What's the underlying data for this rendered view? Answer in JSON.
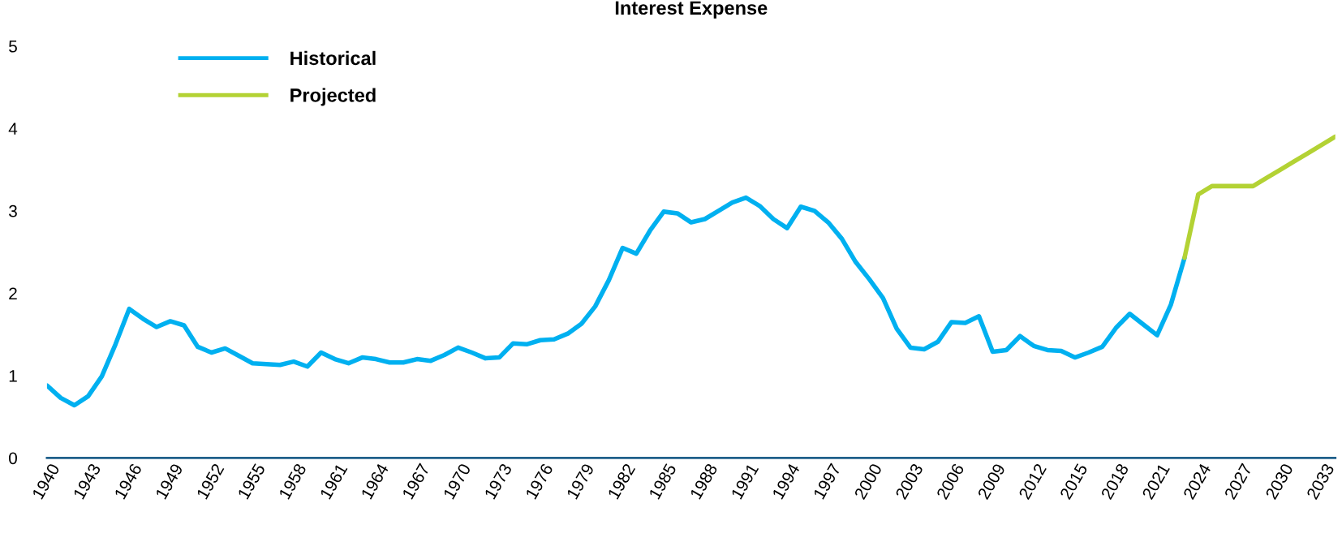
{
  "chart_data": {
    "type": "line",
    "title": "Interest Expense",
    "xlim": [
      1940,
      2034
    ],
    "xticks": [
      1940,
      1943,
      1946,
      1949,
      1952,
      1955,
      1958,
      1961,
      1964,
      1967,
      1970,
      1973,
      1976,
      1979,
      1982,
      1985,
      1988,
      1991,
      1994,
      1997,
      2000,
      2003,
      2006,
      2009,
      2012,
      2015,
      2018,
      2021,
      2024,
      2027,
      2030,
      2033
    ],
    "ylim": [
      0,
      5
    ],
    "yticks": [
      0,
      1,
      2,
      3,
      4,
      5
    ],
    "grid": false,
    "legend": "top left",
    "marker": "none",
    "line_style": "solid",
    "series": [
      {
        "name": "Historical",
        "color": "#00b0f0",
        "x": [
          1940,
          1941,
          1942,
          1943,
          1944,
          1945,
          1946,
          1947,
          1948,
          1949,
          1950,
          1951,
          1952,
          1953,
          1954,
          1955,
          1956,
          1957,
          1958,
          1959,
          1960,
          1961,
          1962,
          1963,
          1964,
          1965,
          1966,
          1967,
          1968,
          1969,
          1970,
          1971,
          1972,
          1973,
          1974,
          1975,
          1976,
          1977,
          1978,
          1979,
          1980,
          1981,
          1982,
          1983,
          1984,
          1985,
          1986,
          1987,
          1988,
          1989,
          1990,
          1991,
          1992,
          1993,
          1994,
          1995,
          1996,
          1997,
          1998,
          1999,
          2000,
          2001,
          2002,
          2003,
          2004,
          2005,
          2006,
          2007,
          2008,
          2009,
          2010,
          2011,
          2012,
          2013,
          2014,
          2015,
          2016,
          2017,
          2018,
          2019,
          2020,
          2021,
          2022,
          2023
        ],
        "values": [
          0.88,
          0.73,
          0.64,
          0.75,
          0.99,
          1.38,
          1.81,
          1.69,
          1.59,
          1.66,
          1.61,
          1.35,
          1.28,
          1.33,
          1.24,
          1.15,
          1.14,
          1.13,
          1.17,
          1.11,
          1.28,
          1.2,
          1.15,
          1.22,
          1.2,
          1.16,
          1.16,
          1.2,
          1.18,
          1.25,
          1.34,
          1.28,
          1.21,
          1.22,
          1.39,
          1.38,
          1.43,
          1.44,
          1.51,
          1.63,
          1.84,
          2.16,
          2.55,
          2.48,
          2.76,
          2.99,
          2.97,
          2.86,
          2.9,
          3.0,
          3.1,
          3.16,
          3.06,
          2.9,
          2.79,
          3.05,
          3.0,
          2.86,
          2.66,
          2.38,
          2.17,
          1.94,
          1.57,
          1.34,
          1.32,
          1.41,
          1.65,
          1.64,
          1.72,
          1.29,
          1.31,
          1.48,
          1.36,
          1.31,
          1.3,
          1.22,
          1.28,
          1.35,
          1.58,
          1.75,
          1.62,
          1.49,
          1.86,
          2.43
        ]
      },
      {
        "name": "Projected",
        "color": "#b3d234",
        "x": [
          2023,
          2024,
          2025,
          2026,
          2027,
          2028,
          2029,
          2030,
          2031,
          2032,
          2033,
          2034
        ],
        "values": [
          2.43,
          3.2,
          3.3,
          3.3,
          3.3,
          3.3,
          3.4,
          3.5,
          3.6,
          3.7,
          3.8,
          3.9
        ]
      }
    ]
  }
}
